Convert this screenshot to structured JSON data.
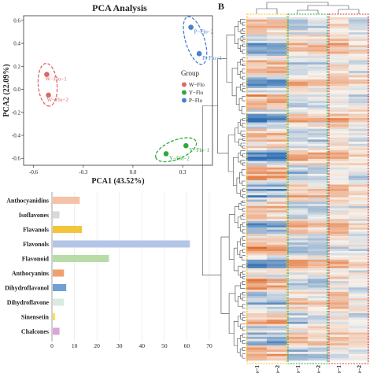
{
  "panels": {
    "heatmap_letter": "B"
  },
  "chart_data": [
    {
      "type": "scatter",
      "title": "PCA Analysis",
      "xlabel": "PCA1 (43.52%)",
      "ylabel": "PCA2 (22.09%)",
      "xlim": [
        -0.66,
        0.48
      ],
      "ylim": [
        -0.66,
        0.64
      ],
      "xticks": [
        "-0.6",
        "-0.3",
        "0.0",
        "0.3"
      ],
      "xtick_values": [
        -0.6,
        -0.3,
        0.0,
        0.3
      ],
      "yticks": [
        "0.6",
        "0.4",
        "0.2",
        "0.0",
        "-0.2",
        "-0.4",
        "-0.6"
      ],
      "ytick_values": [
        0.6,
        0.4,
        0.2,
        0.0,
        -0.2,
        -0.4,
        -0.6
      ],
      "grid": false,
      "legend": {
        "title": "Group",
        "placement": "right",
        "entries": [
          {
            "name": "W−Flo",
            "color": "#e06666"
          },
          {
            "name": "Y−Flo",
            "color": "#2eaa3a"
          },
          {
            "name": "P−Flo",
            "color": "#4a7fd0"
          }
        ]
      },
      "series": [
        {
          "name": "W−Flo",
          "color": "#e06666",
          "points": [
            {
              "x": -0.52,
              "y": 0.13,
              "label": "W−Flo−1"
            },
            {
              "x": -0.51,
              "y": -0.05,
              "label": "W−Flo−2"
            }
          ]
        },
        {
          "name": "Y−Flo",
          "color": "#2eaa3a",
          "points": [
            {
              "x": 0.32,
              "y": -0.49,
              "label": "Y−Flo−1"
            },
            {
              "x": 0.2,
              "y": -0.56,
              "label": "Y−Flo−2"
            }
          ]
        },
        {
          "name": "P−Flo",
          "color": "#4a7fd0",
          "points": [
            {
              "x": 0.4,
              "y": 0.31,
              "label": "P−Flo−1"
            },
            {
              "x": 0.35,
              "y": 0.54,
              "label": "P−Flo−2"
            }
          ]
        }
      ]
    },
    {
      "type": "bar",
      "orientation": "horizontal",
      "categories": [
        "Anthocyanidins",
        "Isoflavones",
        "Flavanols",
        "Flavonols",
        "Flavonoid",
        "Anthocyanins",
        "Dihydroflavonol",
        "Dihydroflavone",
        "Sinensetin",
        "Chalcones"
      ],
      "category_labels": [
        "Anthocyanidins",
        "Isoflavones",
        "Flavanols",
        "Flavonols",
        "Flavonoid",
        "Anthocyanins",
        "Dihydroflavonol",
        "Dihydroflavone",
        "Sinensetin",
        "Chalcones"
      ],
      "values": [
        12,
        3,
        13,
        61,
        25,
        5,
        6,
        5,
        1,
        3
      ],
      "colors": [
        "#f4c2a5",
        "#d9d9d9",
        "#f2c53d",
        "#b4c6e7",
        "#b9dba7",
        "#f0a070",
        "#6f9fd3",
        "#d9ebe0",
        "#f5e24a",
        "#d9a6d9"
      ],
      "xlim": [
        0,
        70
      ],
      "xticks": [
        "0",
        "10",
        "20",
        "30",
        "40",
        "50",
        "60",
        "70"
      ],
      "xtick_values": [
        0,
        10,
        20,
        30,
        40,
        50,
        60,
        70
      ],
      "grid": true
    },
    {
      "type": "heatmap",
      "columns": [
        "W−Flo−1",
        "W−Flo−2",
        "Y−Flo−1",
        "Y−Flo−2",
        "P−Flo−1",
        "P−Flo−2"
      ],
      "column_groups": [
        {
          "name": "W−Flo",
          "color": "#f2c233"
        },
        {
          "name": "Y−Flo",
          "color": "#2eaa3a"
        },
        {
          "name": "P−Flo",
          "color": "#d63a3a"
        }
      ],
      "low_color": "#2f6fb3",
      "mid_color": "#f7f3ee",
      "high_color": "#e36b2a",
      "row_dendrogram": true,
      "column_dendrogram": true
    }
  ]
}
